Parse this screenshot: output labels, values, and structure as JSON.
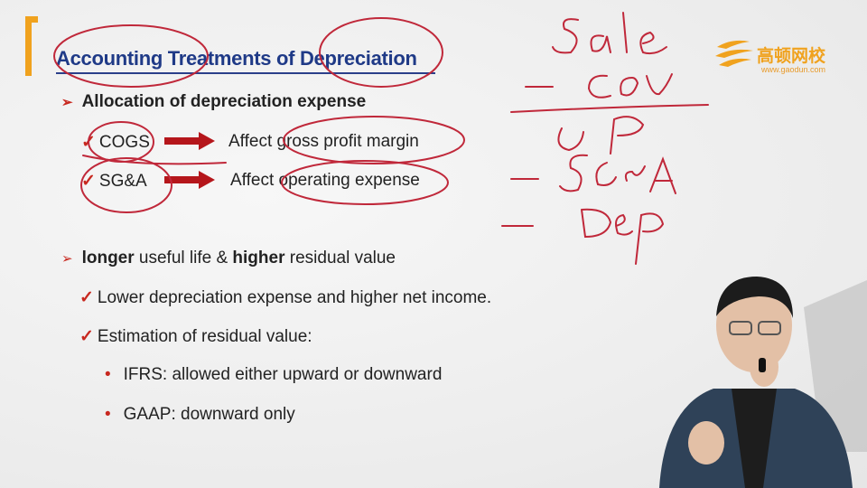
{
  "slide": {
    "title": "Accounting Treatments of Depreciation",
    "section1": {
      "heading": "Allocation of depreciation expense",
      "rows": [
        {
          "item": "COGS",
          "effect": "Affect gross profit margin"
        },
        {
          "item": "SG&A",
          "effect": "Affect operating expense"
        }
      ]
    },
    "section2": {
      "heading_bold1": "longer",
      "heading_mid": " useful life & ",
      "heading_bold2": "higher",
      "heading_end": " residual value",
      "checks": [
        "Lower depreciation expense and higher net income.",
        "Estimation of residual value:"
      ],
      "dots": [
        "IFRS: allowed either upward or downward",
        "GAAP: downward only"
      ]
    }
  },
  "logo": {
    "name": "高顿网校",
    "url": "www.gaodun.com",
    "icon": "gaodun-logo-icon",
    "color": "#f0a21e"
  },
  "colors": {
    "accent": "#c8281f",
    "title": "#1f3a87",
    "bracket": "#f0a21e",
    "ink": "#c0283a"
  }
}
